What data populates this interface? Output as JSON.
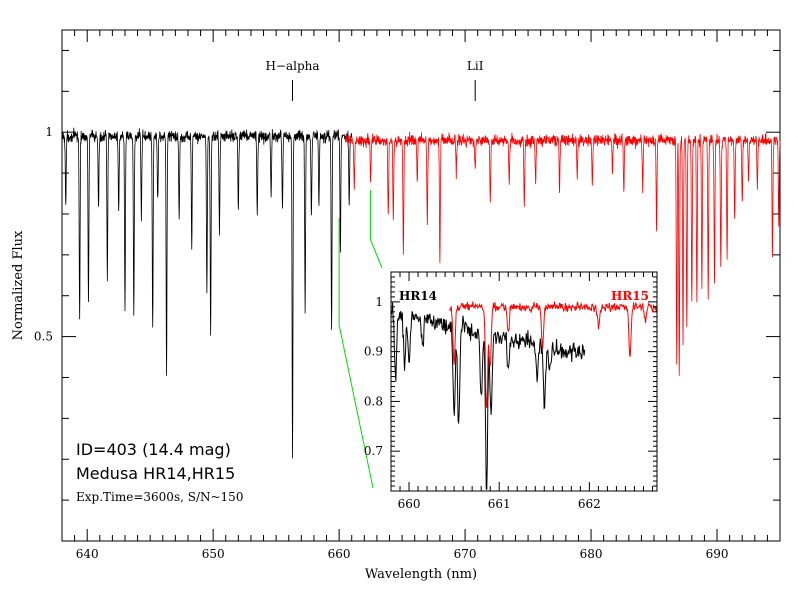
{
  "chart_data": [
    {
      "type": "line",
      "panel": "main",
      "xlabel": "Wavelength (nm)",
      "ylabel": "Normalized Flux",
      "xlim": [
        638,
        695
      ],
      "ylim": [
        0.0,
        1.25
      ],
      "x_ticks": [
        640,
        650,
        660,
        670,
        680,
        690
      ],
      "y_ticks": [
        0.5,
        1
      ],
      "annotations": [
        {
          "label": "H−alpha",
          "x": 656.3
        },
        {
          "label": "LiI",
          "x": 670.8
        }
      ],
      "info_text": [
        "ID=403 (14.4 mag)",
        "Medusa HR14,HR15",
        "Exp.Time=3600s, S/N~150"
      ],
      "series": [
        {
          "color": "#000000",
          "x_range": [
            638,
            661
          ],
          "continuum": 0.99,
          "absorption_lines": [
            {
              "x": 638.3,
              "depth": 0.17
            },
            {
              "x": 639.4,
              "depth": 0.45
            },
            {
              "x": 640.1,
              "depth": 0.41
            },
            {
              "x": 640.9,
              "depth": 0.18
            },
            {
              "x": 641.6,
              "depth": 0.35
            },
            {
              "x": 642.5,
              "depth": 0.18
            },
            {
              "x": 643.0,
              "depth": 0.43
            },
            {
              "x": 643.7,
              "depth": 0.44
            },
            {
              "x": 644.3,
              "depth": 0.2
            },
            {
              "x": 645.2,
              "depth": 0.48
            },
            {
              "x": 645.6,
              "depth": 0.16
            },
            {
              "x": 646.3,
              "depth": 0.58
            },
            {
              "x": 647.3,
              "depth": 0.2
            },
            {
              "x": 648.3,
              "depth": 0.27
            },
            {
              "x": 649.5,
              "depth": 0.39
            },
            {
              "x": 649.8,
              "depth": 0.49
            },
            {
              "x": 650.5,
              "depth": 0.24
            },
            {
              "x": 652.0,
              "depth": 0.18
            },
            {
              "x": 653.5,
              "depth": 0.19
            },
            {
              "x": 654.6,
              "depth": 0.15
            },
            {
              "x": 655.5,
              "depth": 0.17
            },
            {
              "x": 656.3,
              "depth": 0.79
            },
            {
              "x": 657.3,
              "depth": 0.43
            },
            {
              "x": 657.8,
              "depth": 0.2
            },
            {
              "x": 658.4,
              "depth": 0.17
            },
            {
              "x": 659.4,
              "depth": 0.48
            },
            {
              "x": 660.1,
              "depth": 0.28
            },
            {
              "x": 660.8,
              "depth": 0.17
            }
          ]
        },
        {
          "color": "#ff0000",
          "x_range": [
            660.5,
            695
          ],
          "continuum": 0.98,
          "absorption_lines": [
            {
              "x": 661.2,
              "depth": 0.12
            },
            {
              "x": 662.5,
              "depth": 0.1
            },
            {
              "x": 663.9,
              "depth": 0.18
            },
            {
              "x": 664.3,
              "depth": 0.2
            },
            {
              "x": 665.1,
              "depth": 0.28
            },
            {
              "x": 666.2,
              "depth": 0.1
            },
            {
              "x": 667.0,
              "depth": 0.21
            },
            {
              "x": 668.0,
              "depth": 0.3
            },
            {
              "x": 669.3,
              "depth": 0.08
            },
            {
              "x": 670.8,
              "depth": 0.07
            },
            {
              "x": 672.0,
              "depth": 0.15
            },
            {
              "x": 673.5,
              "depth": 0.1
            },
            {
              "x": 674.7,
              "depth": 0.17
            },
            {
              "x": 675.6,
              "depth": 0.1
            },
            {
              "x": 677.5,
              "depth": 0.12
            },
            {
              "x": 678.9,
              "depth": 0.09
            },
            {
              "x": 680.1,
              "depth": 0.11
            },
            {
              "x": 681.7,
              "depth": 0.08
            },
            {
              "x": 682.6,
              "depth": 0.13
            },
            {
              "x": 684.1,
              "depth": 0.12
            },
            {
              "x": 685.2,
              "depth": 0.21
            },
            {
              "x": 686.8,
              "depth": 0.53
            },
            {
              "x": 687.0,
              "depth": 0.58
            },
            {
              "x": 687.3,
              "depth": 0.5
            },
            {
              "x": 687.6,
              "depth": 0.46
            },
            {
              "x": 688.0,
              "depth": 0.4
            },
            {
              "x": 688.4,
              "depth": 0.4
            },
            {
              "x": 688.8,
              "depth": 0.36
            },
            {
              "x": 689.3,
              "depth": 0.38
            },
            {
              "x": 689.8,
              "depth": 0.34
            },
            {
              "x": 690.3,
              "depth": 0.3
            },
            {
              "x": 690.8,
              "depth": 0.29
            },
            {
              "x": 691.4,
              "depth": 0.2
            },
            {
              "x": 692.0,
              "depth": 0.16
            },
            {
              "x": 692.5,
              "depth": 0.1
            },
            {
              "x": 693.2,
              "depth": 0.12
            },
            {
              "x": 694.4,
              "depth": 0.28
            },
            {
              "x": 694.9,
              "depth": 0.2
            }
          ]
        }
      ]
    },
    {
      "type": "line",
      "panel": "inset",
      "xlim": [
        659.8,
        662.75
      ],
      "ylim": [
        0.62,
        1.06
      ],
      "x_ticks": [
        660,
        661,
        662
      ],
      "y_ticks": [
        0.7,
        0.8,
        0.9,
        1
      ],
      "zoom_range_nm": [
        660,
        662.5
      ],
      "series": [
        {
          "name": "HR14",
          "color": "#000000",
          "x_range": [
            659.8,
            661.95
          ],
          "continuum": 0.98,
          "slope": -0.04,
          "noise": 0.018,
          "absorption_lines": [
            {
              "x": 659.85,
              "depth": 0.13
            },
            {
              "x": 659.95,
              "depth": 0.1
            },
            {
              "x": 660.0,
              "depth": 0.1
            },
            {
              "x": 660.15,
              "depth": 0.06
            },
            {
              "x": 660.5,
              "depth": 0.18
            },
            {
              "x": 660.55,
              "depth": 0.2
            },
            {
              "x": 660.8,
              "depth": 0.13
            },
            {
              "x": 660.86,
              "depth": 0.31
            },
            {
              "x": 660.91,
              "depth": 0.16
            },
            {
              "x": 661.1,
              "depth": 0.07
            },
            {
              "x": 661.42,
              "depth": 0.07
            },
            {
              "x": 661.5,
              "depth": 0.12
            },
            {
              "x": 661.56,
              "depth": 0.06
            }
          ]
        },
        {
          "name": "HR15",
          "color": "#ff0000",
          "x_range": [
            660.45,
            662.75
          ],
          "continuum": 0.99,
          "slope": 0.0,
          "noise": 0.009,
          "absorption_lines": [
            {
              "x": 660.5,
              "depth": 0.11
            },
            {
              "x": 660.86,
              "depth": 0.21
            },
            {
              "x": 660.9,
              "depth": 0.12
            },
            {
              "x": 661.1,
              "depth": 0.05
            },
            {
              "x": 661.48,
              "depth": 0.08
            },
            {
              "x": 662.1,
              "depth": 0.04
            },
            {
              "x": 662.45,
              "depth": 0.1
            },
            {
              "x": 662.62,
              "depth": 0.03
            }
          ]
        }
      ]
    }
  ]
}
